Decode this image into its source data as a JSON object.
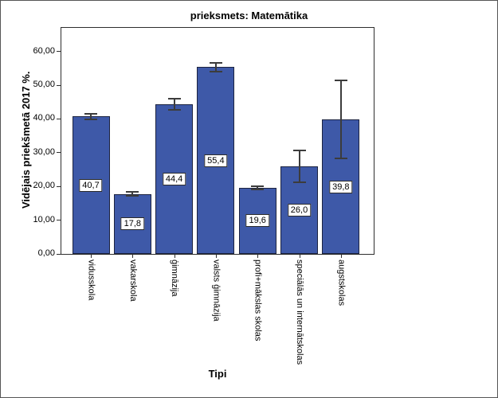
{
  "chart_data": {
    "type": "bar",
    "title": "prieksmets: Matemātika",
    "xlabel": "Tipi",
    "ylabel": "Vidējais priekšmetā 2017 %.",
    "categories": [
      "vidusskola",
      "vakarskola",
      "ģimnāzija",
      "valsts ģimnāzija",
      "profi+mākslas skolas",
      "speciālās un internātskolas",
      "augstskolas"
    ],
    "values": [
      40.7,
      17.8,
      44.4,
      55.4,
      19.6,
      26.0,
      39.8
    ],
    "value_labels": [
      "40,7",
      "17,8",
      "44,4",
      "55,4",
      "19,6",
      "26,0",
      "39,8"
    ],
    "errors": [
      1.0,
      0.9,
      1.9,
      1.5,
      0.7,
      5.0,
      11.8
    ],
    "y_ticks": [
      "0,00",
      "10,00",
      "20,00",
      "30,00",
      "40,00",
      "50,00",
      "60,00"
    ],
    "y_tick_values": [
      0,
      10,
      20,
      30,
      40,
      50,
      60
    ],
    "ylim": [
      0,
      67
    ],
    "grid": false,
    "legend": null,
    "bar_color": "#3E59A8",
    "bar_border_color": "#1C2340",
    "error_color": "#3C3C3C",
    "label_box_color": "#FFFFFF"
  }
}
